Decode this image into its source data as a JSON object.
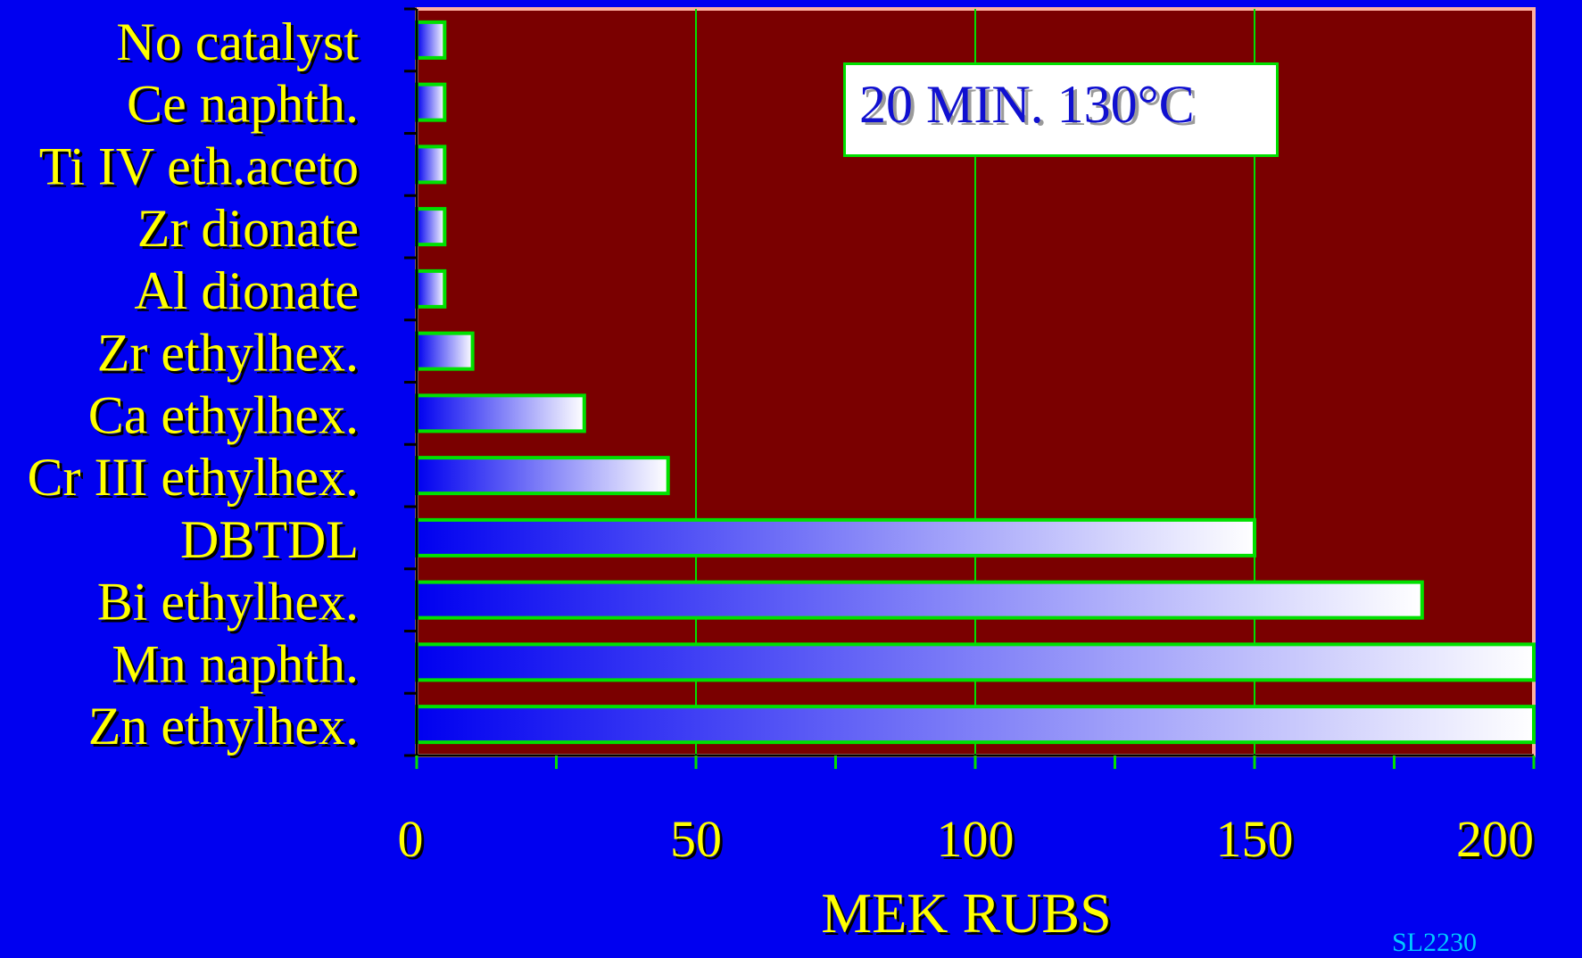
{
  "chart_data": {
    "type": "bar",
    "orientation": "horizontal",
    "categories": [
      "No catalyst",
      "Ce naphth.",
      "Ti IV eth.aceto",
      "Zr dionate",
      "Al dionate",
      "Zr ethylhex.",
      "Ca ethylhex.",
      "Cr III ethylhex.",
      "DBTDL",
      "Bi ethylhex.",
      "Mn naphth.",
      "Zn ethylhex."
    ],
    "values": [
      5,
      5,
      5,
      5,
      5,
      10,
      30,
      45,
      150,
      180,
      200,
      200
    ],
    "xlabel": "MEK RUBS",
    "xlim": [
      0,
      200
    ],
    "xticks": [
      0,
      50,
      100,
      150,
      200
    ],
    "grid": true,
    "annotation": "20 MIN. 130°C",
    "colors": {
      "background": "#0000f0",
      "plot_area": "#7a0000",
      "plot_border": "#ffb0a0",
      "gridlines": "#00e000",
      "bar_border": "#00e000",
      "bar_gradient_start": "#0000f0",
      "bar_gradient_end": "#ffffff",
      "text": "#ffff00"
    }
  },
  "footer_ref": "SL2230"
}
